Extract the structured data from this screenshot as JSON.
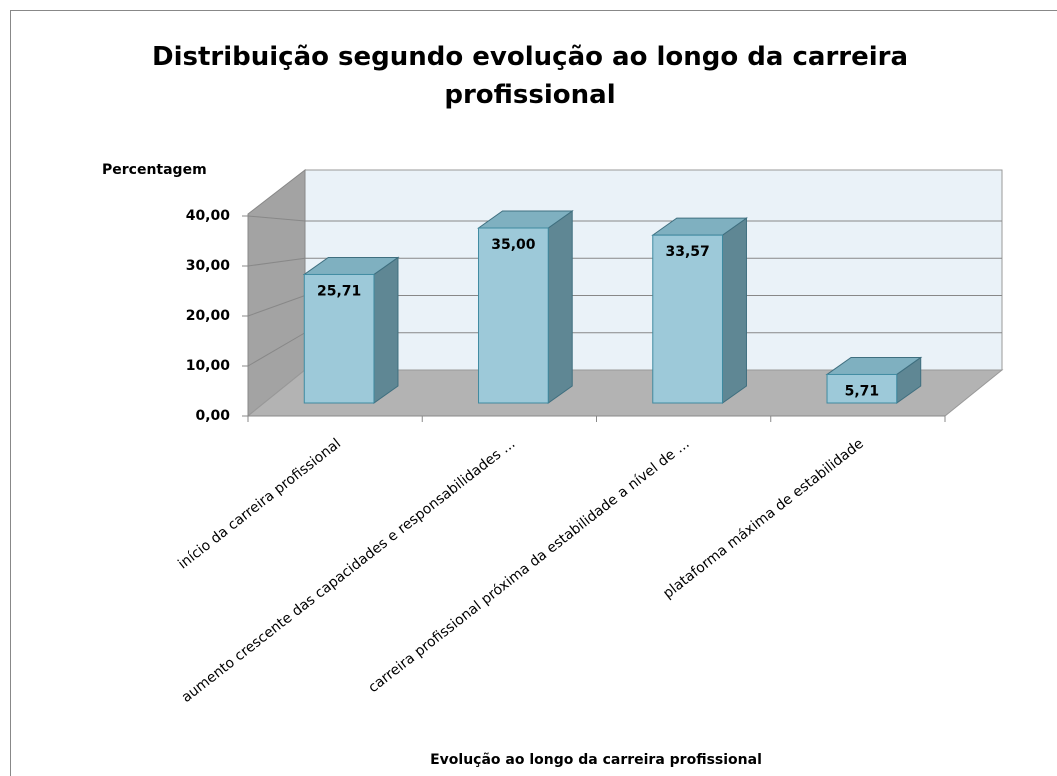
{
  "chart_data": {
    "type": "bar3d",
    "title": "Distribuição segundo evolução ao longo da carreira profissional",
    "ylabel": "Percentagem",
    "xlabel": "Evolução ao longo da carreira profissional",
    "categories": [
      "início da carreira profissional",
      "aumento crescente das capacidades e responsabilidades ...",
      "carreira profissional próxima da estabilidade a nível de ...",
      "plataforma máxima de estabilidade"
    ],
    "values": [
      25.71,
      35.0,
      33.57,
      5.71
    ],
    "value_labels": [
      "25,71",
      "35,00",
      "33,57",
      "5,71"
    ],
    "color": "#9dc9d9",
    "ylim": [
      0,
      40
    ],
    "yticks": [
      {
        "value": 0,
        "label": "0,00"
      },
      {
        "value": 10,
        "label": "10,00"
      },
      {
        "value": 20,
        "label": "20,00"
      },
      {
        "value": 30,
        "label": "30,00"
      },
      {
        "value": 40,
        "label": "40,00"
      }
    ],
    "grid": true
  }
}
